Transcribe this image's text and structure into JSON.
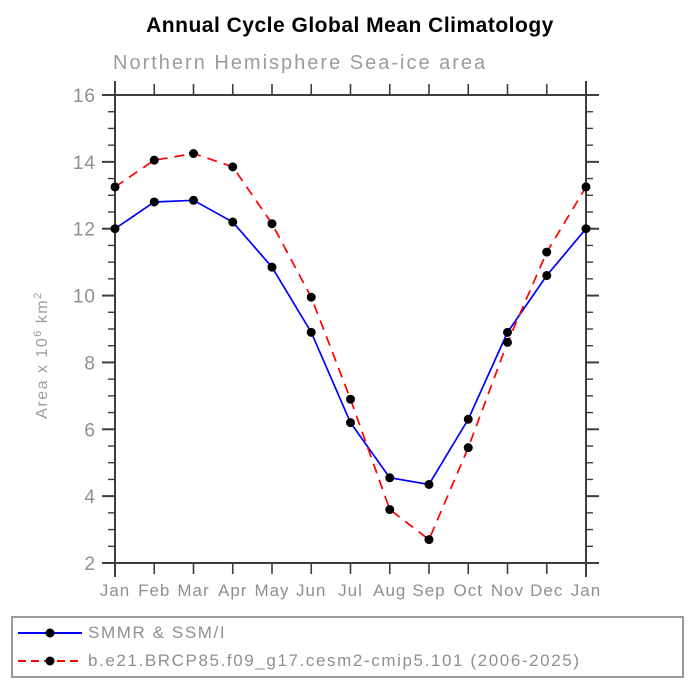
{
  "title": "Annual Cycle Global Mean Climatology",
  "subtitle": "Northern Hemisphere Sea-ice area",
  "y_axis_title": {
    "pre": "Area x 10",
    "sup1": "6",
    "mid": " km",
    "sup2": "2"
  },
  "colors": {
    "axis": "#3d3d3d",
    "tick_label": "#8f8f8f",
    "title": "#000000",
    "subtitle": "#9c9c9c",
    "legend_border": "#999999",
    "marker": "#000000",
    "obs_line": "#0000ff",
    "model_line": "#ff0000"
  },
  "chart_data": {
    "type": "line",
    "title": "Annual Cycle Global Mean Climatology",
    "subtitle": "Northern Hemisphere Sea-ice area",
    "ylabel": "Area x 10^6 km^2",
    "xlabel": "",
    "categories": [
      "Jan",
      "Feb",
      "Mar",
      "Apr",
      "May",
      "Jun",
      "Jul",
      "Aug",
      "Sep",
      "Oct",
      "Nov",
      "Dec",
      "Jan"
    ],
    "series": [
      {
        "name": "SMMR & SSM/I",
        "color": "#0000ff",
        "line_style": "solid",
        "marker": "filled-circle",
        "marker_color": "#000000",
        "values": [
          12.0,
          12.8,
          12.85,
          12.2,
          10.85,
          8.9,
          6.2,
          4.55,
          4.35,
          6.3,
          8.9,
          10.6,
          12.0
        ]
      },
      {
        "name": "b.e21.BRCP85.f09_g17.cesm2-cmip5.101 (2006-2025)",
        "color": "#ff0000",
        "line_style": "dashed",
        "marker": "filled-circle",
        "marker_color": "#000000",
        "values": [
          13.25,
          14.05,
          14.25,
          13.85,
          12.15,
          9.95,
          6.9,
          3.6,
          2.7,
          5.45,
          8.6,
          11.3,
          13.25
        ]
      }
    ],
    "ylim": [
      2,
      16
    ],
    "y_major_ticks": [
      2,
      4,
      6,
      8,
      10,
      12,
      14,
      16
    ],
    "y_minor_step": 0.5,
    "grid": false,
    "legend_position": "bottom-box"
  }
}
